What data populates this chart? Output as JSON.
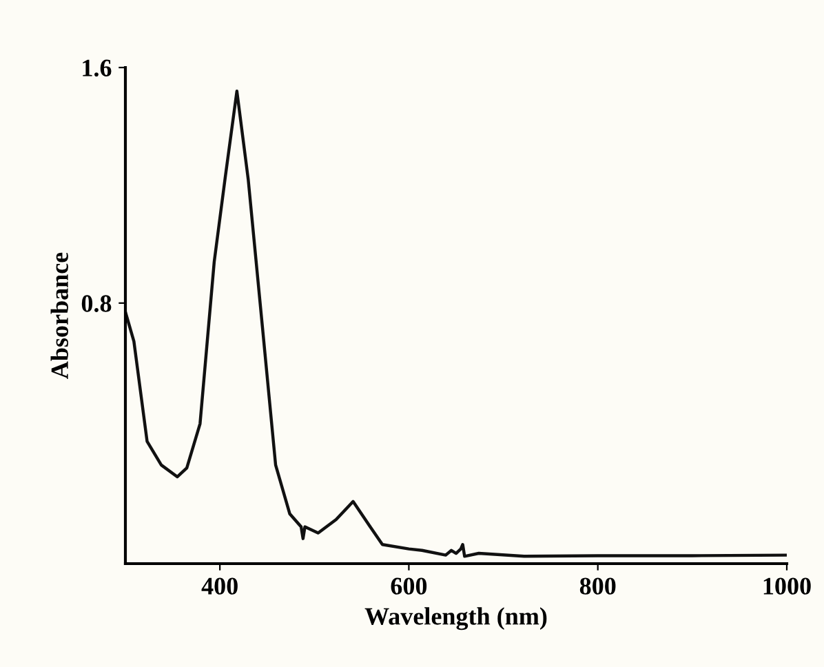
{
  "chart_data": {
    "type": "line",
    "xlabel": "Wavelength (nm)",
    "ylabel": "Absorbance",
    "x": [
      300,
      309,
      323,
      338,
      355,
      365,
      379,
      394,
      406,
      418,
      430,
      445,
      459,
      474,
      486,
      488,
      490,
      504,
      523,
      541,
      557,
      572,
      600,
      614,
      639,
      645,
      650,
      655,
      657,
      659,
      674,
      722,
      800,
      900,
      1000
    ],
    "series": [
      {
        "color": "#111111",
        "values": [
          0.77,
          0.67,
          0.33,
          0.25,
          0.21,
          0.24,
          0.39,
          0.94,
          1.235,
          1.52,
          1.22,
          0.72,
          0.25,
          0.084,
          0.04,
          0.0,
          0.04,
          0.019,
          0.065,
          0.126,
          0.05,
          -0.02,
          -0.035,
          -0.04,
          -0.056,
          -0.04,
          -0.05,
          -0.035,
          -0.02,
          -0.06,
          -0.05,
          -0.06,
          -0.058,
          -0.058,
          -0.056
        ]
      }
    ],
    "xlim": [
      300,
      1000
    ],
    "ylim": [
      -0.085,
      1.6
    ],
    "xticks": [
      400,
      600,
      800,
      1000
    ],
    "yticks": [
      0.8,
      1.6
    ],
    "grid": false,
    "legend": false,
    "line_style": "solid",
    "marker": "none"
  }
}
